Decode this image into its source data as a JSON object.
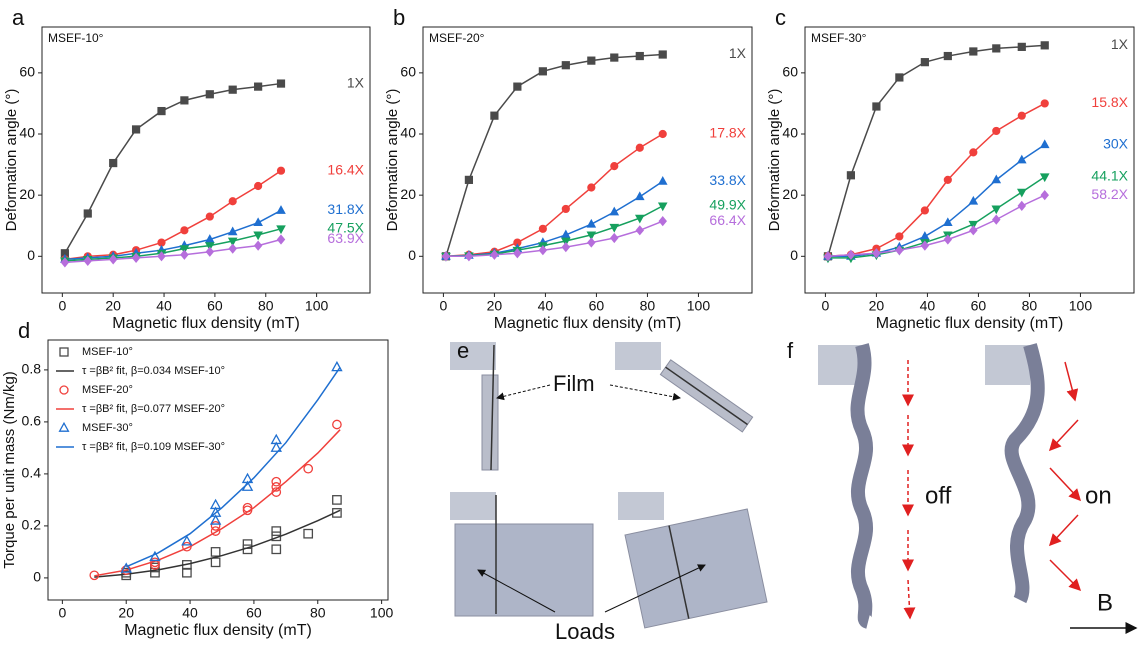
{
  "chart_data": [
    {
      "type": "line",
      "panel_label": "a",
      "annotation": "MSEF-10°",
      "xlabel": "Magnetic flux density (mT)",
      "ylabel": "Deformation angle (°)",
      "x": [
        1,
        10,
        20,
        29,
        39,
        48,
        58,
        67,
        77,
        86
      ],
      "xlim": [
        -8,
        121
      ],
      "xticks": [
        0,
        20,
        40,
        60,
        80,
        100
      ],
      "ylim": [
        -12,
        75
      ],
      "yticks": [
        0,
        20,
        40,
        60
      ],
      "series": [
        {
          "name": "1X",
          "color": "#4a4a4a",
          "marker": "square",
          "values": [
            1,
            14,
            30.5,
            41.5,
            47.5,
            51,
            53,
            54.5,
            55.5,
            56.5
          ]
        },
        {
          "name": "16.4X",
          "color": "#f0403c",
          "marker": "circle",
          "values": [
            -1,
            0,
            0.5,
            2,
            4.5,
            8.5,
            13,
            18,
            23,
            28
          ]
        },
        {
          "name": "31.8X",
          "color": "#1f6fd0",
          "marker": "triangle-up",
          "values": [
            -1,
            -0.5,
            0,
            1,
            2,
            3.5,
            5.5,
            8,
            11,
            15
          ]
        },
        {
          "name": "47.5X",
          "color": "#16a05e",
          "marker": "triangle-down",
          "values": [
            -1.5,
            -1,
            -0.5,
            0,
            1,
            2.5,
            3.5,
            5,
            7,
            9
          ]
        },
        {
          "name": "63.9X",
          "color": "#b66edc",
          "marker": "diamond",
          "values": [
            -2,
            -1.5,
            -1,
            -0.5,
            0,
            0.5,
            1.5,
            2.5,
            3.5,
            5.5
          ]
        }
      ]
    },
    {
      "type": "line",
      "panel_label": "b",
      "annotation": "MSEF-20°",
      "xlabel": "Magnetic flux density (mT)",
      "ylabel": "Deformation angle (°)",
      "x": [
        1,
        10,
        20,
        29,
        39,
        48,
        58,
        67,
        77,
        86
      ],
      "xlim": [
        -8,
        121
      ],
      "xticks": [
        0,
        20,
        40,
        60,
        80,
        100
      ],
      "ylim": [
        -12,
        75
      ],
      "yticks": [
        0,
        20,
        40,
        60
      ],
      "series": [
        {
          "name": "1X",
          "color": "#4a4a4a",
          "marker": "square",
          "values": [
            0,
            25,
            46,
            55.5,
            60.5,
            62.5,
            64,
            65,
            65.5,
            66
          ]
        },
        {
          "name": "17.8X",
          "color": "#f0403c",
          "marker": "circle",
          "values": [
            0,
            0.5,
            1.5,
            4.5,
            9,
            15.5,
            22.5,
            29.5,
            35.5,
            40
          ]
        },
        {
          "name": "33.8X",
          "color": "#1f6fd0",
          "marker": "triangle-up",
          "values": [
            0,
            0.3,
            1,
            2.5,
            4.5,
            7,
            10.5,
            14.5,
            19.5,
            24.5
          ]
        },
        {
          "name": "49.9X",
          "color": "#16a05e",
          "marker": "triangle-down",
          "values": [
            0,
            0.2,
            0.7,
            2,
            3.5,
            5,
            7,
            9.5,
            12.5,
            16.5
          ]
        },
        {
          "name": "66.4X",
          "color": "#b66edc",
          "marker": "diamond",
          "values": [
            0,
            0,
            0.5,
            1,
            2,
            3,
            4.5,
            6,
            8.5,
            11.5
          ]
        }
      ]
    },
    {
      "type": "line",
      "panel_label": "c",
      "annotation": "MSEF-30°",
      "xlabel": "Magnetic flux density (mT)",
      "ylabel": "Deformation angle (°)",
      "x": [
        1,
        10,
        20,
        29,
        39,
        48,
        58,
        67,
        77,
        86
      ],
      "xlim": [
        -8,
        121
      ],
      "xticks": [
        0,
        20,
        40,
        60,
        80,
        100
      ],
      "ylim": [
        -12,
        75
      ],
      "yticks": [
        0,
        20,
        40,
        60
      ],
      "series": [
        {
          "name": "1X",
          "color": "#4a4a4a",
          "marker": "square",
          "values": [
            0,
            26.5,
            49,
            58.5,
            63.5,
            65.5,
            67,
            68,
            68.5,
            69
          ]
        },
        {
          "name": "15.8X",
          "color": "#f0403c",
          "marker": "circle",
          "values": [
            0,
            0.5,
            2.5,
            6.5,
            15,
            25,
            34,
            41,
            46,
            50
          ]
        },
        {
          "name": "30X",
          "color": "#1f6fd0",
          "marker": "triangle-up",
          "values": [
            0,
            0,
            1,
            3,
            6.5,
            11,
            18,
            25,
            31.5,
            36.5
          ]
        },
        {
          "name": "44.1X",
          "color": "#16a05e",
          "marker": "triangle-down",
          "values": [
            -0.5,
            -0.5,
            0.5,
            2,
            4.5,
            7,
            10.5,
            15.5,
            21,
            26
          ]
        },
        {
          "name": "58.2X",
          "color": "#b66edc",
          "marker": "diamond",
          "values": [
            0,
            0.5,
            1,
            2,
            3.5,
            5.5,
            8.5,
            12,
            16.5,
            20
          ]
        }
      ]
    },
    {
      "type": "scatter",
      "panel_label": "d",
      "xlabel": "Magnetic flux density (mT)",
      "ylabel": "Torque per unit mass (Nm/kg)",
      "xlim": [
        -4.5,
        102
      ],
      "xticks": [
        0,
        20,
        40,
        60,
        80,
        100
      ],
      "ylim": [
        -0.085,
        0.915
      ],
      "yticks": [
        0.0,
        0.2,
        0.4,
        0.6,
        0.8
      ],
      "legend": "upper left",
      "series": [
        {
          "name": "MSEF-10°",
          "color": "#4a4a4a",
          "marker": "square",
          "x": [
            20,
            20,
            29,
            29,
            39,
            39,
            48,
            48,
            58,
            58,
            67,
            67,
            67,
            77,
            86,
            86
          ],
          "values": [
            0.01,
            0.02,
            0.02,
            0.04,
            0.02,
            0.05,
            0.06,
            0.1,
            0.11,
            0.13,
            0.11,
            0.16,
            0.18,
            0.17,
            0.25,
            0.3
          ]
        },
        {
          "name": "τ =βB² fit, β=0.034  MSEF-10°",
          "color": "#333333",
          "x": [
            10,
            20,
            30,
            40,
            50,
            60,
            70,
            80,
            87
          ],
          "values": [
            0.003,
            0.014,
            0.031,
            0.055,
            0.086,
            0.123,
            0.168,
            0.22,
            0.26
          ]
        },
        {
          "name": "MSEF-20°",
          "color": "#f0403c",
          "marker": "circle",
          "x": [
            10,
            20,
            29,
            29,
            39,
            48,
            48,
            58,
            58,
            67,
            67,
            67,
            77,
            86
          ],
          "values": [
            0.01,
            0.03,
            0.05,
            0.06,
            0.12,
            0.18,
            0.2,
            0.26,
            0.27,
            0.33,
            0.35,
            0.37,
            0.42,
            0.59
          ]
        },
        {
          "name": "τ =βB² fit, β=0.077  MSEF-20°",
          "color": "#f0403c",
          "x": [
            10,
            20,
            30,
            40,
            50,
            60,
            70,
            80,
            87
          ],
          "values": [
            0.008,
            0.03,
            0.068,
            0.12,
            0.19,
            0.27,
            0.37,
            0.48,
            0.57
          ]
        },
        {
          "name": "MSEF-30°",
          "color": "#1f6fd0",
          "marker": "triangle-up",
          "x": [
            20,
            29,
            39,
            48,
            48,
            48,
            58,
            58,
            67,
            67,
            86
          ],
          "values": [
            0.035,
            0.08,
            0.14,
            0.22,
            0.25,
            0.28,
            0.35,
            0.38,
            0.5,
            0.53,
            0.81
          ]
        },
        {
          "name": "τ =βB² fit, β=0.109  MSEF-30°",
          "color": "#1f6fd0",
          "x": [
            20,
            30,
            40,
            50,
            60,
            70,
            80,
            87
          ],
          "values": [
            0.043,
            0.096,
            0.17,
            0.27,
            0.385,
            0.52,
            0.685,
            0.81
          ]
        }
      ]
    }
  ],
  "photo_panels": [
    {
      "panel_label": "e",
      "labels": [
        "Film",
        "Loads"
      ]
    },
    {
      "panel_label": "f",
      "labels": [
        "off",
        "on",
        "B"
      ]
    }
  ]
}
